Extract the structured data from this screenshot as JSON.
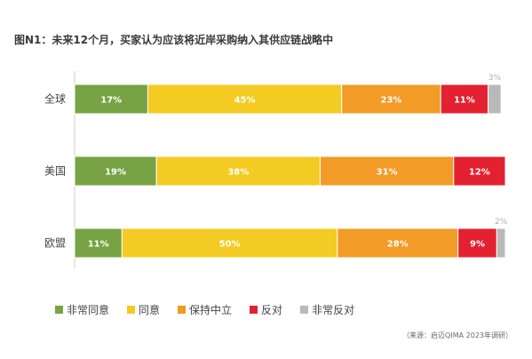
{
  "chart_data": {
    "type": "bar",
    "orientation": "horizontal",
    "stacked": true,
    "percent": true,
    "title": "图N1：未来12个月，买家认为应该将近岸采购纳入其供应链战略中",
    "categories": [
      "全球",
      "美国",
      "欧盟"
    ],
    "series": [
      {
        "name": "非常同意",
        "color": "#77a344",
        "values": [
          17,
          19,
          11
        ]
      },
      {
        "name": "同意",
        "color": "#f4cb22",
        "values": [
          45,
          38,
          50
        ]
      },
      {
        "name": "保持中立",
        "color": "#f29b26",
        "values": [
          23,
          31,
          28
        ]
      },
      {
        "name": "反对",
        "color": "#e32130",
        "values": [
          11,
          12,
          9
        ]
      },
      {
        "name": "非常反对",
        "color": "#b9b9b9",
        "values": [
          3,
          0,
          2
        ]
      }
    ],
    "data_labels": [
      [
        "17%",
        "19%",
        "11%"
      ],
      [
        "45%",
        "38%",
        "50%"
      ],
      [
        "23%",
        "31%",
        "28%"
      ],
      [
        "11%",
        "12%",
        "9%"
      ],
      [
        "3%",
        "",
        "2%"
      ]
    ],
    "xlim": [
      0,
      100
    ],
    "grid": false,
    "legend_position": "bottom-left",
    "source": "（来源：启迈QIMA 2023年调研）"
  }
}
